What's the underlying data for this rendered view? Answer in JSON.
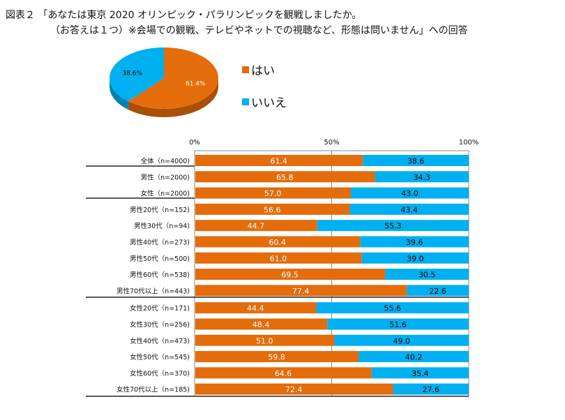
{
  "title": {
    "line1": "図表２ 「あなたは東京 2020 オリンピック・パラリンピックを観戦しましたか。",
    "line2": "（お答えは１つ）※会場での観戦、テレビやネットでの視聴など、形態は問いません」への回答"
  },
  "colors": {
    "yes": "#E46C0A",
    "no": "#00B0F0"
  },
  "chart_data": [
    {
      "type": "pie",
      "labels": [
        "はい",
        "いいえ"
      ],
      "values": [
        61.4,
        38.6
      ],
      "data_labels": [
        "61.4%",
        "38.6%"
      ],
      "legend": "right",
      "style": "3d"
    },
    {
      "type": "bar",
      "orientation": "horizontal",
      "stacked": true,
      "xlim": [
        0,
        100
      ],
      "x_ticks": [
        "0%",
        "50%",
        "100%"
      ],
      "categories": [
        "全体（n=4000)",
        "男性（n=2000)",
        "女性（n=2000)",
        "男性20代（n=152)",
        "男性30代（n=94)",
        "男性40代（n=273)",
        "男性50代（n=500)",
        "男性60代（n=538)",
        "男性70代以上（n=443)",
        "女性20代（n=171)",
        "女性30代（n=256)",
        "女性40代（n=473)",
        "女性50代（n=545)",
        "女性60代（n=370)",
        "女性70代以上（n=185)"
      ],
      "series": [
        {
          "name": "はい",
          "values": [
            "61.4",
            "65.8",
            "57.0",
            "56.6",
            "44.7",
            "60.4",
            "61.0",
            "69.5",
            "77.4",
            "44.4",
            "48.4",
            "51.0",
            "59.8",
            "64.6",
            "72.4"
          ]
        },
        {
          "name": "いいえ",
          "values": [
            "38.6",
            "34.3",
            "43.0",
            "43.4",
            "55.3",
            "39.6",
            "39.0",
            "30.5",
            "22.6",
            "55.6",
            "51.6",
            "49.0",
            "40.2",
            "35.4",
            "27.6"
          ]
        }
      ],
      "grid": true
    }
  ]
}
